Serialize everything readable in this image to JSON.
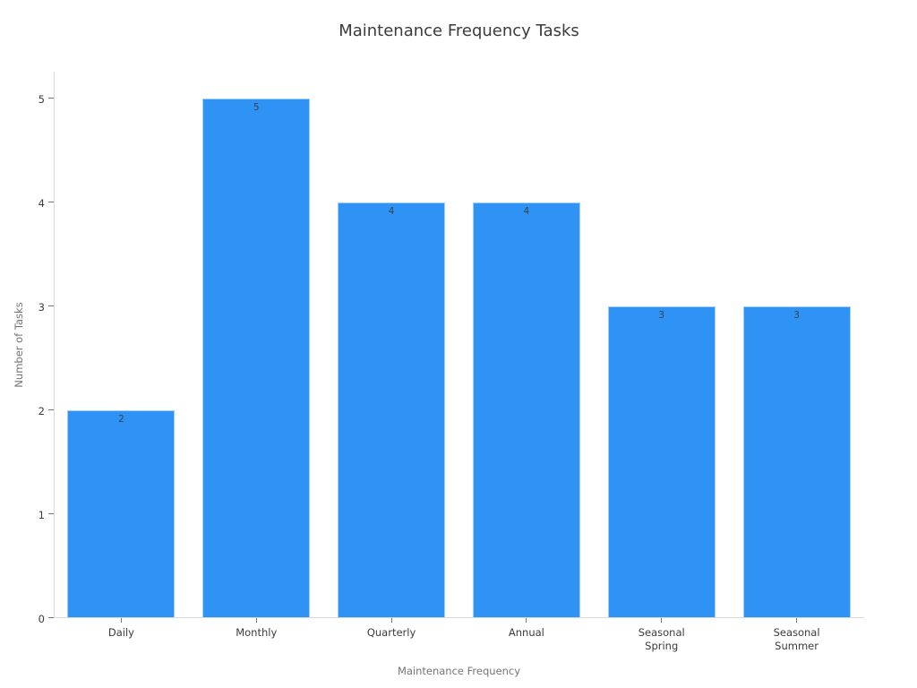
{
  "chart_data": {
    "type": "bar",
    "title": "Maintenance Frequency Tasks",
    "xlabel": "Maintenance Frequency",
    "ylabel": "Number of Tasks",
    "categories": [
      "Daily",
      "Monthly",
      "Quarterly",
      "Annual",
      "Seasonal\nSpring",
      "Seasonal\nSummer"
    ],
    "values": [
      2,
      5,
      4,
      4,
      3,
      3
    ],
    "bar_labels": [
      "2",
      "5",
      "4",
      "4",
      "3",
      "3"
    ],
    "yticks": [
      0,
      1,
      2,
      3,
      4,
      5
    ],
    "ylim": [
      0,
      5
    ],
    "grid": false,
    "legend": "none",
    "bar_color": "#2e93f5",
    "background": "#ffffff"
  }
}
